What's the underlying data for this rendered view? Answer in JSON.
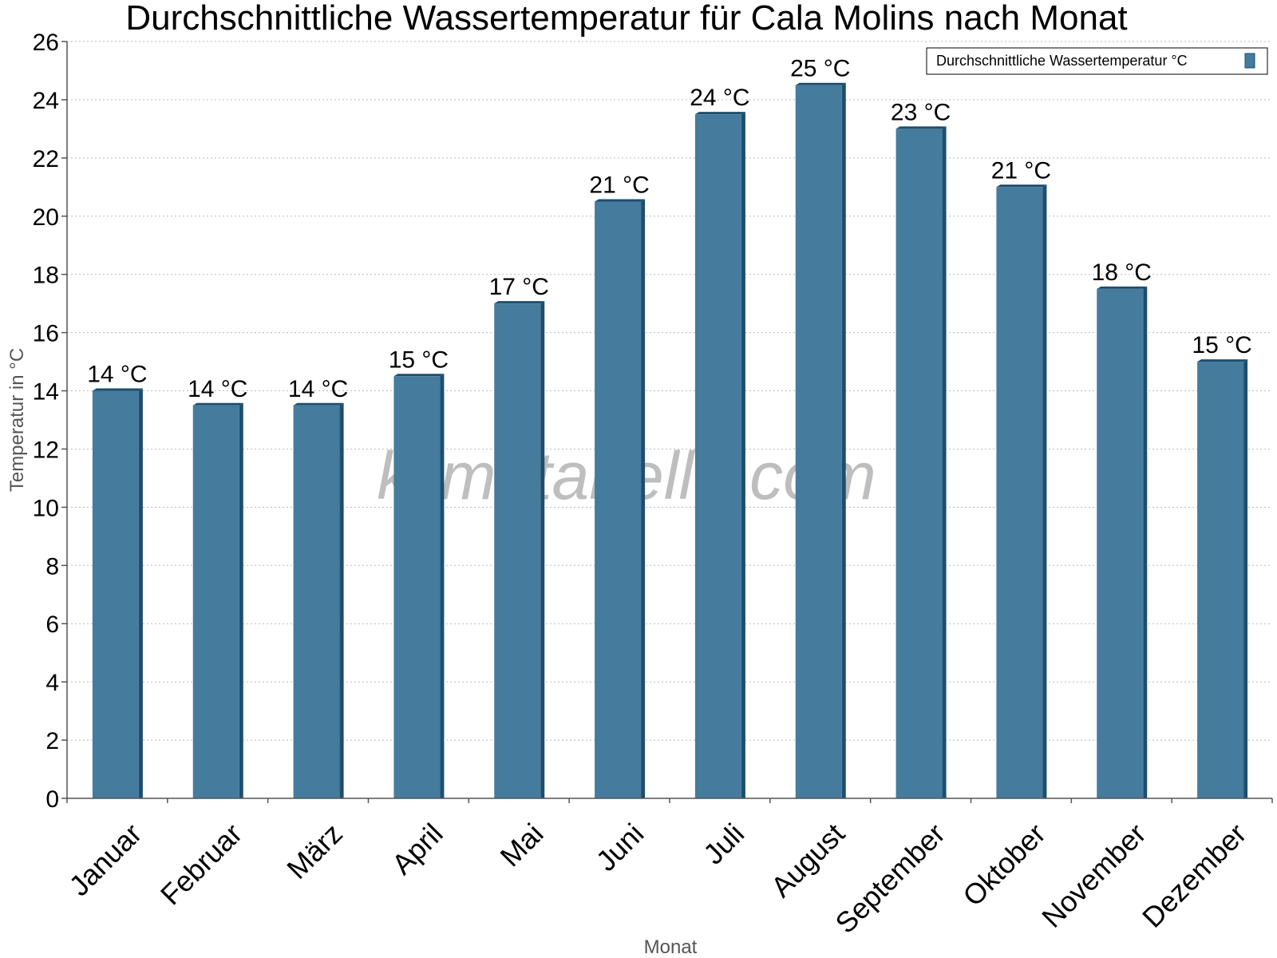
{
  "chart_data": {
    "type": "bar",
    "title": "Durchschnittliche Wassertemperatur für Cala Molins nach Monat",
    "xlabel": "Monat",
    "ylabel": "Temperatur in °C",
    "categories": [
      "Januar",
      "Februar",
      "März",
      "April",
      "Mai",
      "Juni",
      "Juli",
      "August",
      "September",
      "Oktober",
      "November",
      "Dezember"
    ],
    "series": [
      {
        "name": "Durchschnittliche Wassertemperatur °C",
        "values": [
          14,
          13.5,
          13.5,
          14.5,
          17,
          20.5,
          23.5,
          24.5,
          23,
          21,
          17.5,
          15
        ],
        "labels": [
          "14 °C",
          "14 °C",
          "14 °C",
          "15 °C",
          "17 °C",
          "21 °C",
          "24 °C",
          "25 °C",
          "23 °C",
          "21 °C",
          "18 °C",
          "15 °C"
        ],
        "color": "#457b9d",
        "shade_color": "#1d4e6e"
      }
    ],
    "ylim": [
      0,
      26
    ],
    "yticks": [
      "0",
      "2",
      "4",
      "6",
      "8",
      "10",
      "12",
      "14",
      "16",
      "18",
      "20",
      "22",
      "24",
      "26"
    ],
    "grid": true,
    "legend_position": "top-right",
    "watermark": "klimatabelle.com"
  }
}
